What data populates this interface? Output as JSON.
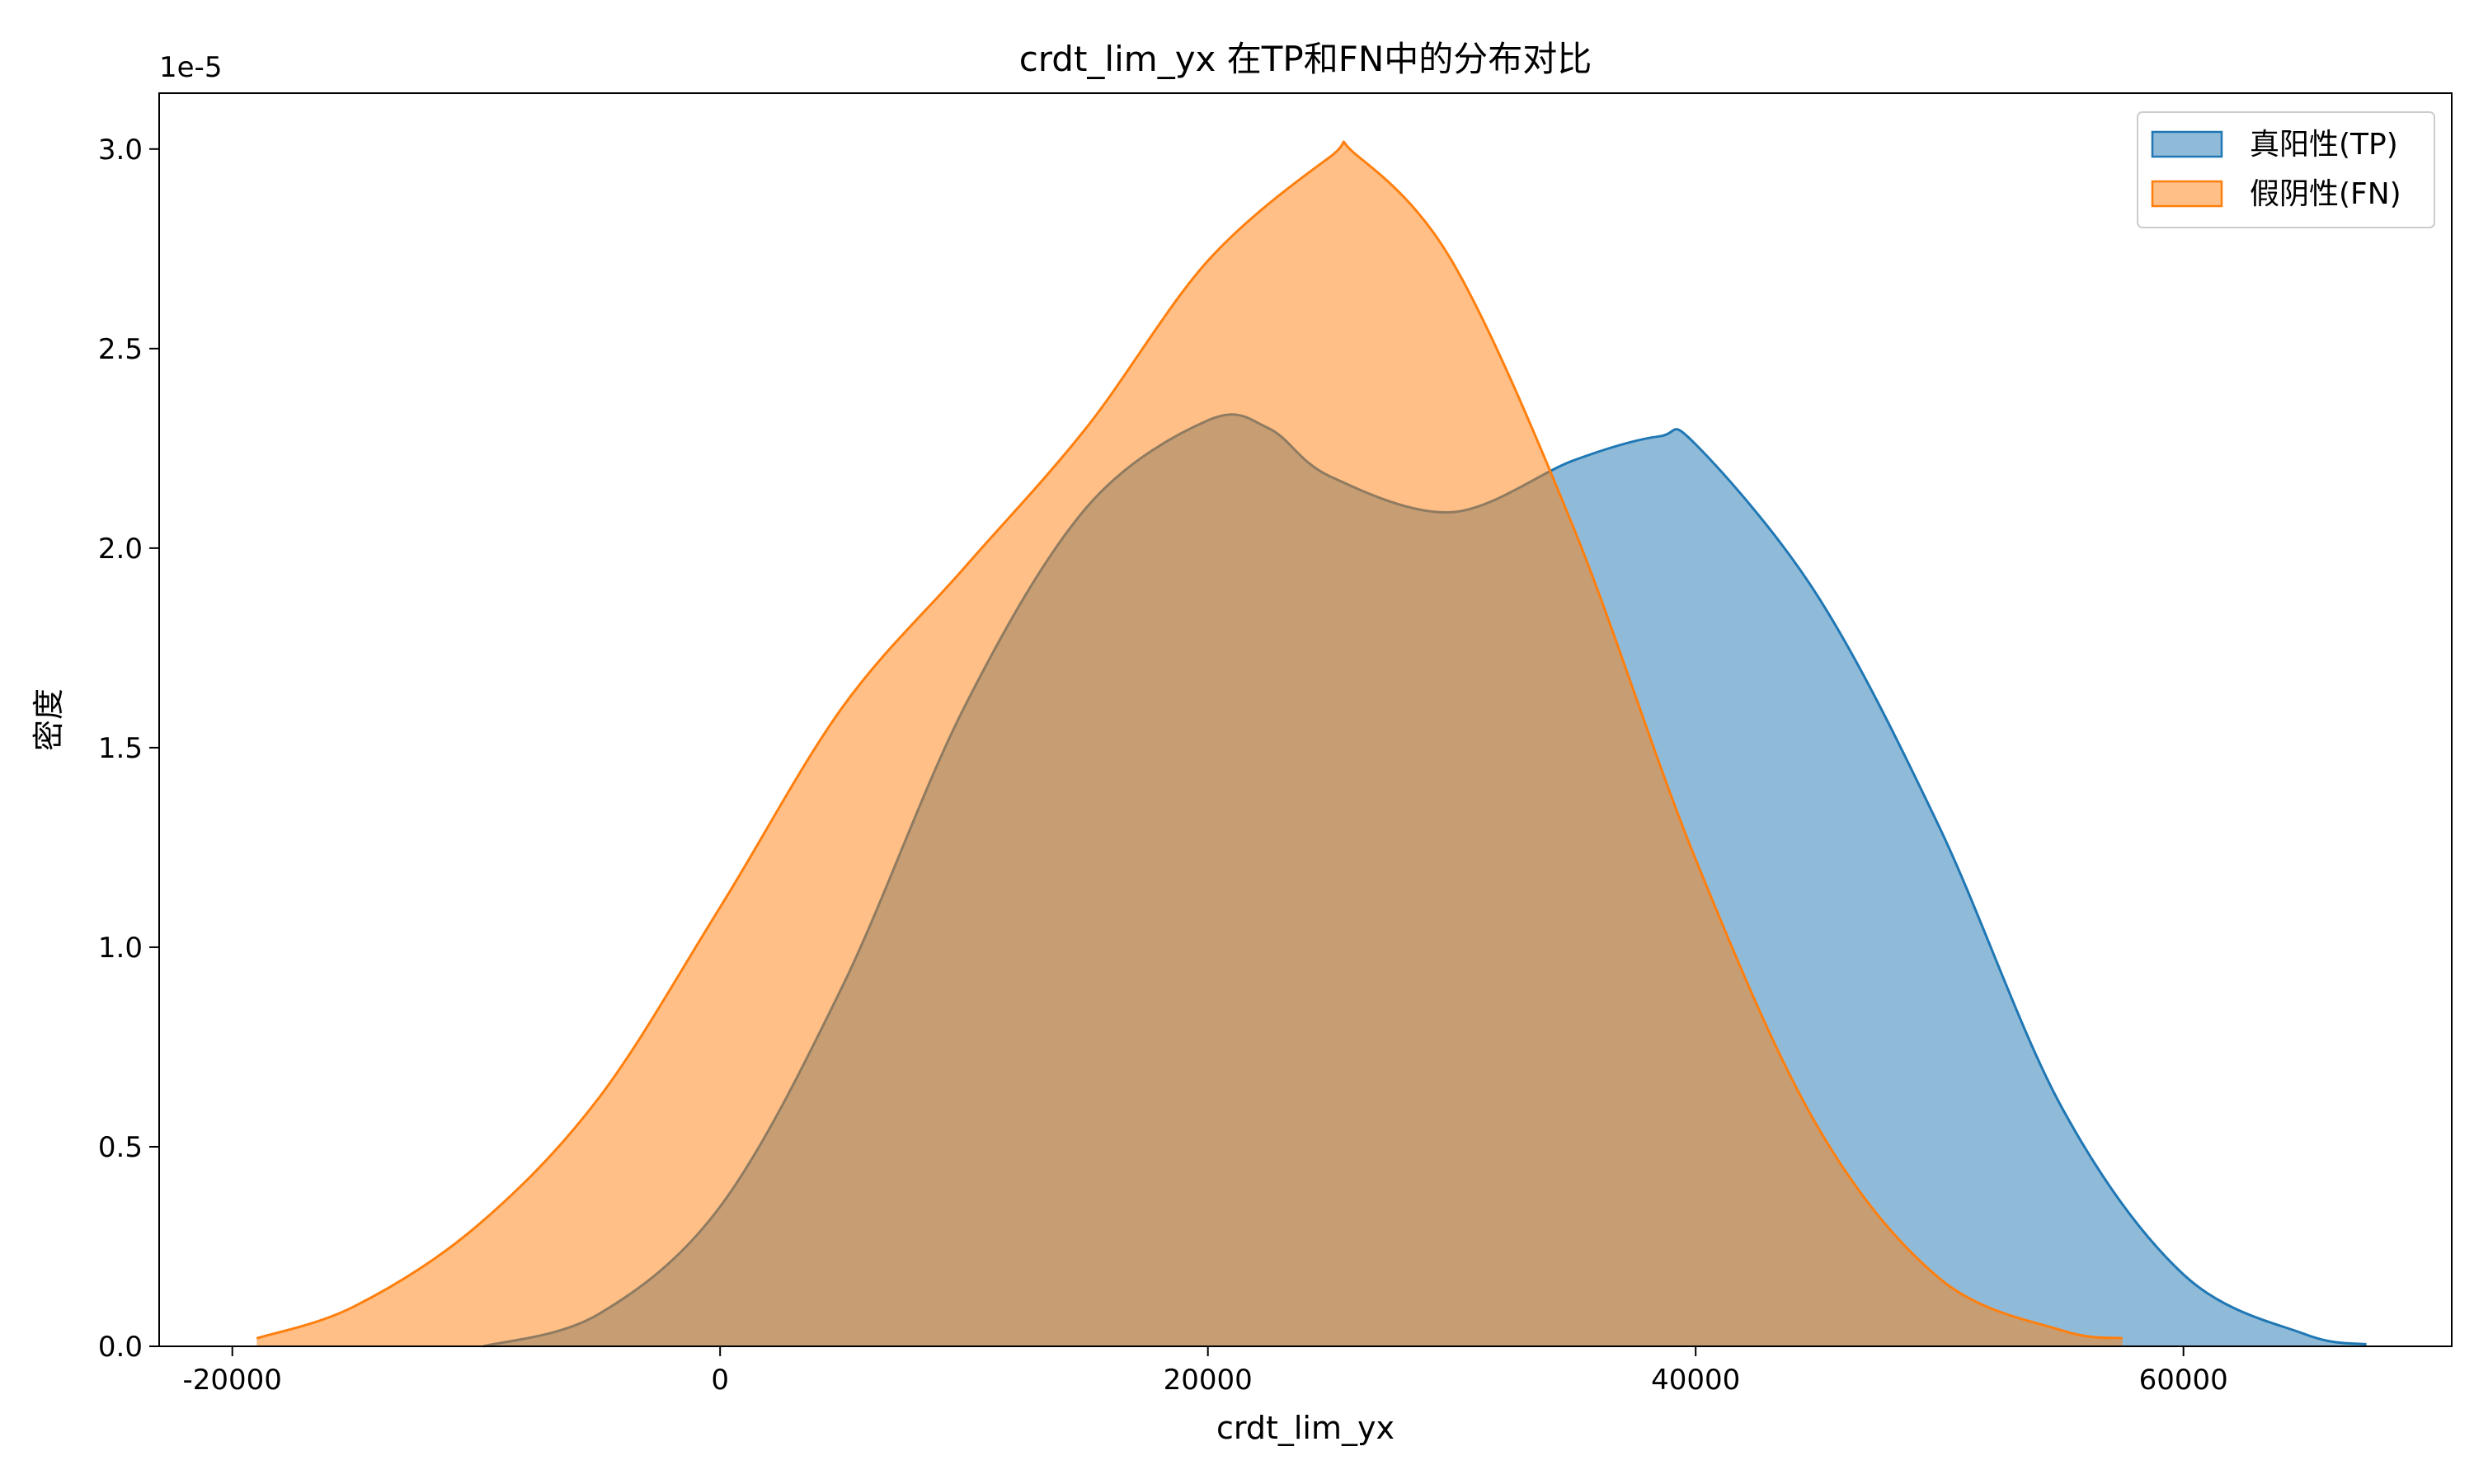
{
  "chart_data": {
    "type": "area",
    "title": "crdt_lim_yx 在TP和FN中的分布对比",
    "xlabel": "crdt_lim_yx",
    "ylabel": "密度",
    "y_offset_label": "1e-5",
    "y_scale_factor": 1e-05,
    "xlim": [
      -23000,
      71000
    ],
    "ylim": [
      0,
      3.14
    ],
    "x_ticks": [
      -20000,
      0,
      20000,
      40000,
      60000
    ],
    "x_tick_labels": [
      "-20000",
      "0",
      "20000",
      "40000",
      "60000"
    ],
    "y_ticks": [
      0,
      0.5,
      1.0,
      1.5,
      2.0,
      2.5,
      3.0
    ],
    "y_tick_labels": [
      "0.0",
      "0.5",
      "1.0",
      "1.5",
      "2.0",
      "2.5",
      "3.0"
    ],
    "grid": false,
    "legend_position": "top-right",
    "series": [
      {
        "name": "真阳性(TP)",
        "color": "#1f77b4",
        "fill_color": "#1f77b4",
        "fill_opacity": 0.5,
        "x": [
          -9700,
          -5000,
          0,
          5000,
          10000,
          15000,
          20000,
          22500,
          25000,
          30000,
          35000,
          38500,
          40000,
          45000,
          50000,
          55000,
          60000,
          65000,
          67500
        ],
        "y": [
          0.0,
          0.08,
          0.35,
          0.9,
          1.6,
          2.1,
          2.32,
          2.3,
          2.18,
          2.09,
          2.22,
          2.28,
          2.26,
          1.88,
          1.3,
          0.6,
          0.18,
          0.03,
          0.005
        ]
      },
      {
        "name": "假阴性(FN)",
        "color": "#ff7f0e",
        "fill_color": "#ff7f0e",
        "fill_opacity": 0.5,
        "x": [
          -19000,
          -15000,
          -10000,
          -5000,
          0,
          5000,
          10000,
          15000,
          20000,
          25000,
          26000,
          30000,
          35000,
          40000,
          45000,
          50000,
          55000,
          57500
        ],
        "y": [
          0.02,
          0.1,
          0.3,
          0.62,
          1.1,
          1.6,
          1.95,
          2.3,
          2.72,
          2.98,
          2.99,
          2.72,
          2.05,
          1.22,
          0.55,
          0.17,
          0.04,
          0.02
        ]
      }
    ]
  }
}
